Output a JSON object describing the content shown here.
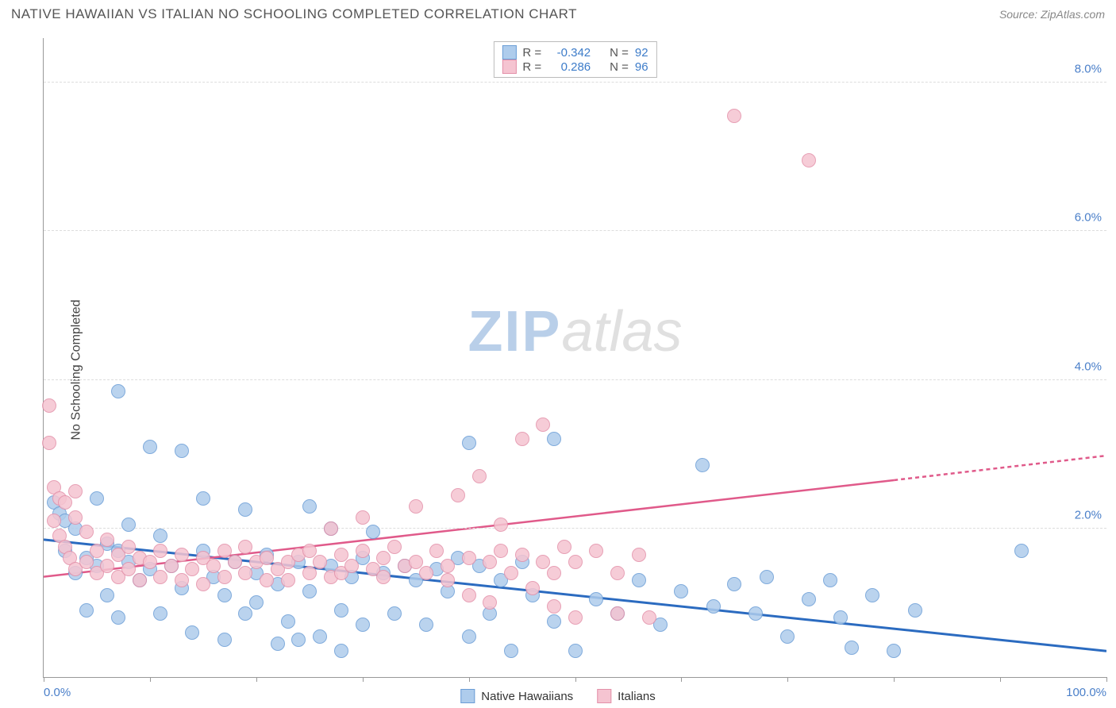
{
  "header": {
    "title": "NATIVE HAWAIIAN VS ITALIAN NO SCHOOLING COMPLETED CORRELATION CHART",
    "source": "Source: ZipAtlas.com"
  },
  "ylabel": "No Schooling Completed",
  "watermark": {
    "part1": "ZIP",
    "part2": "atlas"
  },
  "chart": {
    "type": "scatter",
    "xlim": [
      0,
      100
    ],
    "ylim": [
      0,
      8.6
    ],
    "xticks": [
      0,
      10,
      20,
      30,
      40,
      50,
      60,
      70,
      80,
      90,
      100
    ],
    "xtick_labels": {
      "0": "0.0%",
      "100": "100.0%"
    },
    "yticks": [
      2.0,
      4.0,
      6.0,
      8.0
    ],
    "ytick_labels": [
      "2.0%",
      "4.0%",
      "6.0%",
      "8.0%"
    ],
    "ytick_color": "#4a7fc9",
    "xtick_color": "#4a7fc9",
    "grid_color": "#dddddd",
    "background_color": "#ffffff",
    "marker_radius": 9,
    "marker_stroke_width": 1,
    "series": [
      {
        "name": "Native Hawaiians",
        "fill": "#aeccec",
        "stroke": "#6a9dd6",
        "trend_color": "#2b6bc0",
        "trend_width": 3,
        "trend": {
          "x1": 0,
          "y1": 1.85,
          "x2": 100,
          "y2": 0.35
        },
        "R": "-0.342",
        "N": "92",
        "points": [
          [
            1,
            2.35
          ],
          [
            1.5,
            2.2
          ],
          [
            2,
            2.1
          ],
          [
            2,
            1.7
          ],
          [
            3,
            2.0
          ],
          [
            3,
            1.4
          ],
          [
            4,
            1.6
          ],
          [
            4,
            0.9
          ],
          [
            5,
            1.5
          ],
          [
            5,
            2.4
          ],
          [
            6,
            1.8
          ],
          [
            6,
            1.1
          ],
          [
            7,
            1.7
          ],
          [
            7,
            0.8
          ],
          [
            7,
            3.85
          ],
          [
            8,
            1.55
          ],
          [
            8,
            2.05
          ],
          [
            9,
            1.3
          ],
          [
            10,
            3.1
          ],
          [
            10,
            1.45
          ],
          [
            11,
            1.9
          ],
          [
            11,
            0.85
          ],
          [
            12,
            1.5
          ],
          [
            13,
            3.05
          ],
          [
            13,
            1.2
          ],
          [
            14,
            0.6
          ],
          [
            15,
            1.7
          ],
          [
            15,
            2.4
          ],
          [
            16,
            1.35
          ],
          [
            17,
            1.1
          ],
          [
            17,
            0.5
          ],
          [
            18,
            1.55
          ],
          [
            19,
            2.25
          ],
          [
            19,
            0.85
          ],
          [
            20,
            1.4
          ],
          [
            20,
            1.0
          ],
          [
            21,
            1.65
          ],
          [
            22,
            0.45
          ],
          [
            22,
            1.25
          ],
          [
            23,
            0.75
          ],
          [
            24,
            1.55
          ],
          [
            24,
            0.5
          ],
          [
            25,
            1.15
          ],
          [
            25,
            2.3
          ],
          [
            26,
            0.55
          ],
          [
            27,
            1.5
          ],
          [
            27,
            2.0
          ],
          [
            28,
            0.9
          ],
          [
            28,
            0.35
          ],
          [
            29,
            1.35
          ],
          [
            30,
            1.6
          ],
          [
            30,
            0.7
          ],
          [
            31,
            1.95
          ],
          [
            32,
            1.4
          ],
          [
            33,
            0.85
          ],
          [
            34,
            1.5
          ],
          [
            35,
            1.3
          ],
          [
            36,
            0.7
          ],
          [
            37,
            1.45
          ],
          [
            38,
            1.15
          ],
          [
            39,
            1.6
          ],
          [
            40,
            0.55
          ],
          [
            40,
            3.15
          ],
          [
            41,
            1.5
          ],
          [
            42,
            0.85
          ],
          [
            43,
            1.3
          ],
          [
            44,
            0.35
          ],
          [
            45,
            1.55
          ],
          [
            46,
            1.1
          ],
          [
            48,
            3.2
          ],
          [
            48,
            0.75
          ],
          [
            50,
            0.35
          ],
          [
            52,
            1.05
          ],
          [
            54,
            0.85
          ],
          [
            56,
            1.3
          ],
          [
            58,
            0.7
          ],
          [
            60,
            1.15
          ],
          [
            62,
            2.85
          ],
          [
            63,
            0.95
          ],
          [
            65,
            1.25
          ],
          [
            67,
            0.85
          ],
          [
            68,
            1.35
          ],
          [
            70,
            0.55
          ],
          [
            72,
            1.05
          ],
          [
            74,
            1.3
          ],
          [
            75,
            0.8
          ],
          [
            76,
            0.4
          ],
          [
            78,
            1.1
          ],
          [
            80,
            0.35
          ],
          [
            82,
            0.9
          ],
          [
            92,
            1.7
          ]
        ]
      },
      {
        "name": "Italians",
        "fill": "#f5c4d1",
        "stroke": "#e390a9",
        "trend_color": "#e05a8a",
        "trend_width": 2.5,
        "trend": {
          "x1": 0,
          "y1": 1.35,
          "x2": 80,
          "y2": 2.65
        },
        "trend_dash": {
          "x1": 80,
          "y1": 2.65,
          "x2": 100,
          "y2": 2.98
        },
        "R": "0.286",
        "N": "96",
        "points": [
          [
            0.5,
            3.65
          ],
          [
            0.5,
            3.15
          ],
          [
            1,
            2.55
          ],
          [
            1,
            2.1
          ],
          [
            1.5,
            2.4
          ],
          [
            1.5,
            1.9
          ],
          [
            2,
            2.35
          ],
          [
            2,
            1.75
          ],
          [
            2.5,
            1.6
          ],
          [
            3,
            2.15
          ],
          [
            3,
            1.45
          ],
          [
            3,
            2.5
          ],
          [
            4,
            1.95
          ],
          [
            4,
            1.55
          ],
          [
            5,
            1.7
          ],
          [
            5,
            1.4
          ],
          [
            6,
            1.85
          ],
          [
            6,
            1.5
          ],
          [
            7,
            1.65
          ],
          [
            7,
            1.35
          ],
          [
            8,
            1.75
          ],
          [
            8,
            1.45
          ],
          [
            9,
            1.6
          ],
          [
            9,
            1.3
          ],
          [
            10,
            1.55
          ],
          [
            11,
            1.7
          ],
          [
            11,
            1.35
          ],
          [
            12,
            1.5
          ],
          [
            13,
            1.65
          ],
          [
            13,
            1.3
          ],
          [
            14,
            1.45
          ],
          [
            15,
            1.6
          ],
          [
            15,
            1.25
          ],
          [
            16,
            1.5
          ],
          [
            17,
            1.7
          ],
          [
            17,
            1.35
          ],
          [
            18,
            1.55
          ],
          [
            19,
            1.4
          ],
          [
            19,
            1.75
          ],
          [
            20,
            1.55
          ],
          [
            21,
            1.3
          ],
          [
            21,
            1.6
          ],
          [
            22,
            1.45
          ],
          [
            23,
            1.55
          ],
          [
            23,
            1.3
          ],
          [
            24,
            1.65
          ],
          [
            25,
            1.4
          ],
          [
            25,
            1.7
          ],
          [
            26,
            1.55
          ],
          [
            27,
            1.35
          ],
          [
            27,
            2.0
          ],
          [
            28,
            1.65
          ],
          [
            28,
            1.4
          ],
          [
            29,
            1.5
          ],
          [
            30,
            1.7
          ],
          [
            30,
            2.15
          ],
          [
            31,
            1.45
          ],
          [
            32,
            1.6
          ],
          [
            32,
            1.35
          ],
          [
            33,
            1.75
          ],
          [
            34,
            1.5
          ],
          [
            35,
            2.3
          ],
          [
            35,
            1.55
          ],
          [
            36,
            1.4
          ],
          [
            37,
            1.7
          ],
          [
            38,
            1.5
          ],
          [
            38,
            1.3
          ],
          [
            39,
            2.45
          ],
          [
            40,
            1.6
          ],
          [
            40,
            1.1
          ],
          [
            41,
            2.7
          ],
          [
            42,
            1.55
          ],
          [
            42,
            1.0
          ],
          [
            43,
            1.7
          ],
          [
            43,
            2.05
          ],
          [
            44,
            1.4
          ],
          [
            45,
            1.65
          ],
          [
            45,
            3.2
          ],
          [
            46,
            1.2
          ],
          [
            47,
            1.55
          ],
          [
            47,
            3.4
          ],
          [
            48,
            1.4
          ],
          [
            48,
            0.95
          ],
          [
            49,
            1.75
          ],
          [
            50,
            1.55
          ],
          [
            50,
            0.8
          ],
          [
            52,
            1.7
          ],
          [
            54,
            0.85
          ],
          [
            54,
            1.4
          ],
          [
            56,
            1.65
          ],
          [
            57,
            0.8
          ],
          [
            65,
            7.55
          ],
          [
            72,
            6.95
          ]
        ]
      }
    ]
  },
  "legend": {
    "items": [
      {
        "label": "Native Hawaiians",
        "fill": "#aeccec",
        "stroke": "#6a9dd6"
      },
      {
        "label": "Italians",
        "fill": "#f5c4d1",
        "stroke": "#e390a9"
      }
    ]
  },
  "stats_box": {
    "rows": [
      {
        "fill": "#aeccec",
        "stroke": "#6a9dd6",
        "R_label": "R =",
        "R": "-0.342",
        "N_label": "N =",
        "N": "92"
      },
      {
        "fill": "#f5c4d1",
        "stroke": "#e390a9",
        "R_label": "R =",
        "R": " 0.286",
        "N_label": "N =",
        "N": "96"
      }
    ],
    "label_color": "#555555",
    "value_color": "#3d7cc9"
  }
}
